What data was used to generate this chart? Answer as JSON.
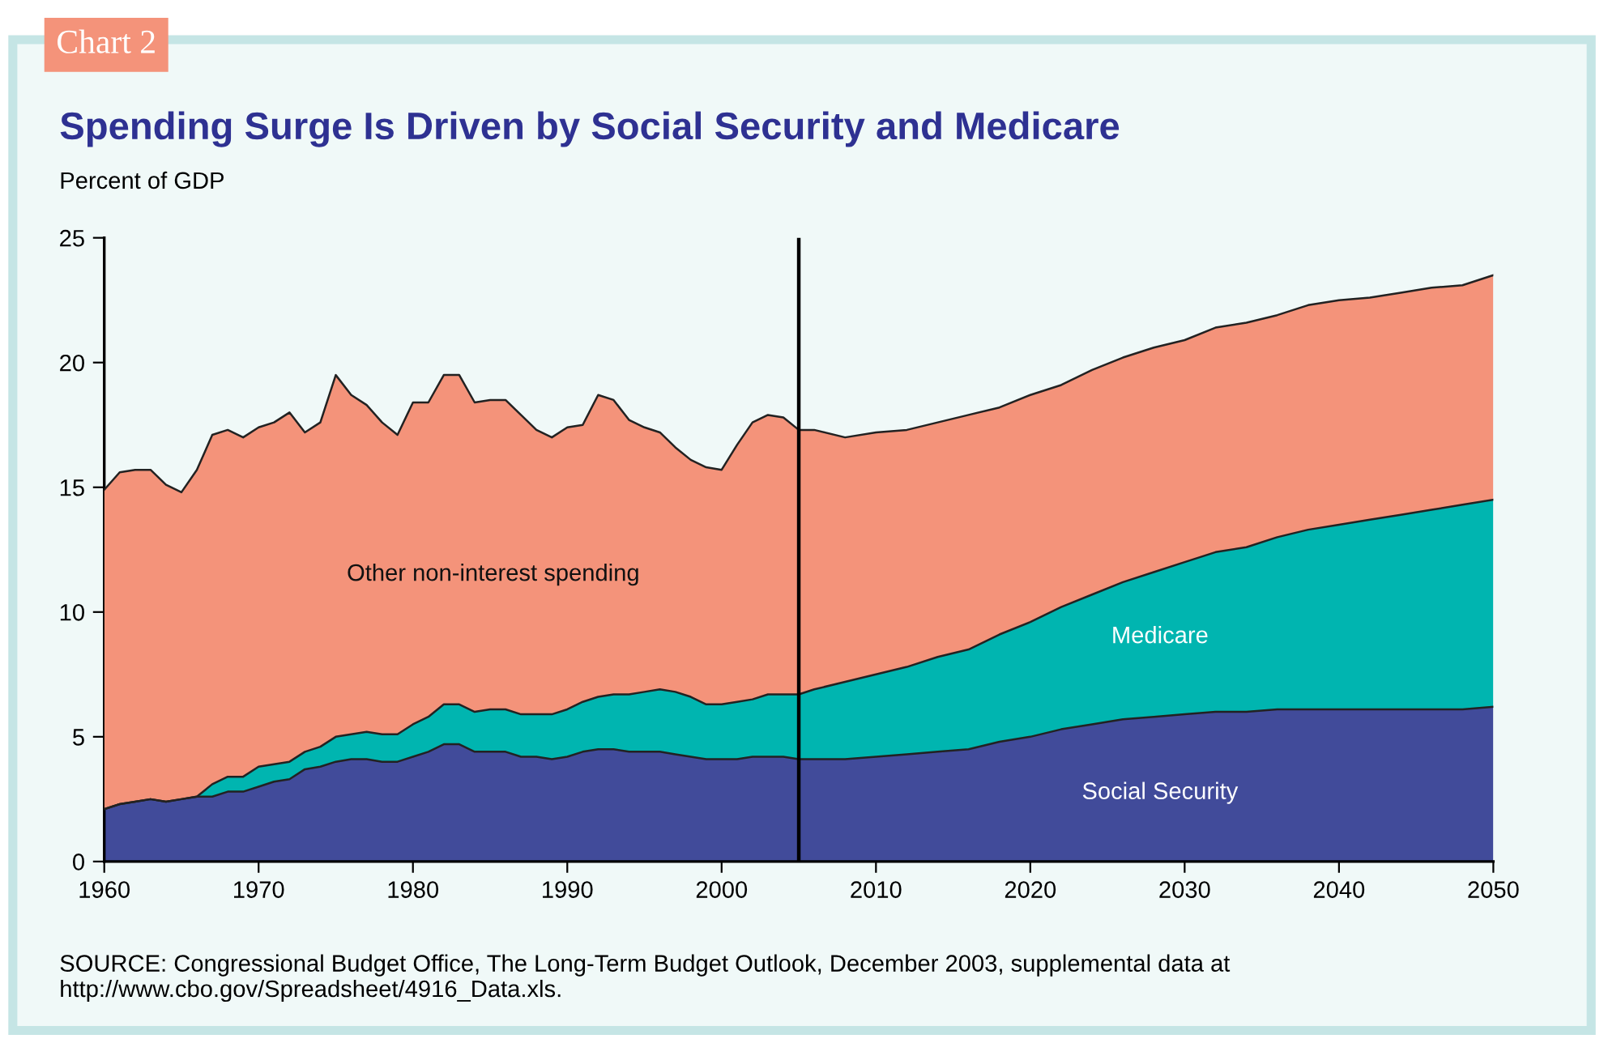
{
  "chart_data": {
    "type": "area",
    "stacked": true,
    "title": "Spending Surge Is Driven by Social Security and Medicare",
    "ylabel": "Percent of GDP",
    "x": [
      1960,
      1961,
      1962,
      1963,
      1964,
      1965,
      1966,
      1967,
      1968,
      1969,
      1970,
      1971,
      1972,
      1973,
      1974,
      1975,
      1976,
      1977,
      1978,
      1979,
      1980,
      1981,
      1982,
      1983,
      1984,
      1985,
      1986,
      1987,
      1988,
      1989,
      1990,
      1991,
      1992,
      1993,
      1994,
      1995,
      1996,
      1997,
      1998,
      1999,
      2000,
      2001,
      2002,
      2003,
      2004,
      2005,
      2006,
      2008,
      2010,
      2012,
      2014,
      2016,
      2018,
      2020,
      2022,
      2024,
      2026,
      2028,
      2030,
      2032,
      2034,
      2036,
      2038,
      2040,
      2042,
      2044,
      2046,
      2048,
      2050
    ],
    "series": [
      {
        "name": "Social Security",
        "color": "#414b9a",
        "values": [
          2.1,
          2.3,
          2.4,
          2.5,
          2.4,
          2.5,
          2.6,
          2.6,
          2.8,
          2.8,
          3.0,
          3.2,
          3.3,
          3.7,
          3.8,
          4.0,
          4.1,
          4.1,
          4.0,
          4.0,
          4.2,
          4.4,
          4.7,
          4.7,
          4.4,
          4.4,
          4.4,
          4.2,
          4.2,
          4.1,
          4.2,
          4.4,
          4.5,
          4.5,
          4.4,
          4.4,
          4.4,
          4.3,
          4.2,
          4.1,
          4.1,
          4.1,
          4.2,
          4.2,
          4.2,
          4.1,
          4.1,
          4.1,
          4.2,
          4.3,
          4.4,
          4.5,
          4.8,
          5.0,
          5.3,
          5.5,
          5.7,
          5.8,
          5.9,
          6.0,
          6.0,
          6.1,
          6.1,
          6.1,
          6.1,
          6.1,
          6.1,
          6.1,
          6.2
        ]
      },
      {
        "name": "Medicare",
        "color": "#00b5b0",
        "values": [
          0,
          0,
          0,
          0,
          0,
          0,
          0,
          0.5,
          0.6,
          0.6,
          0.8,
          0.7,
          0.7,
          0.7,
          0.8,
          1.0,
          1.0,
          1.1,
          1.1,
          1.1,
          1.3,
          1.4,
          1.6,
          1.6,
          1.6,
          1.7,
          1.7,
          1.7,
          1.7,
          1.8,
          1.9,
          2.0,
          2.1,
          2.2,
          2.3,
          2.4,
          2.5,
          2.5,
          2.4,
          2.2,
          2.2,
          2.3,
          2.3,
          2.5,
          2.5,
          2.6,
          2.8,
          3.1,
          3.3,
          3.5,
          3.8,
          4.0,
          4.3,
          4.6,
          4.9,
          5.2,
          5.5,
          5.8,
          6.1,
          6.4,
          6.6,
          6.9,
          7.2,
          7.4,
          7.6,
          7.8,
          8.0,
          8.2,
          8.3
        ]
      },
      {
        "name": "Other non-interest spending",
        "color": "#f4937a",
        "values": [
          12.8,
          13.3,
          13.3,
          13.2,
          12.7,
          12.3,
          13.1,
          14.0,
          13.9,
          13.6,
          13.6,
          13.7,
          14.0,
          12.8,
          13.0,
          14.5,
          13.6,
          13.1,
          12.5,
          12.0,
          12.9,
          12.6,
          13.2,
          13.2,
          12.4,
          12.4,
          12.4,
          12.0,
          11.4,
          11.1,
          11.3,
          11.1,
          12.1,
          11.8,
          11.0,
          10.6,
          10.3,
          9.8,
          9.5,
          9.5,
          9.4,
          10.3,
          11.1,
          11.2,
          11.1,
          10.6,
          10.4,
          9.8,
          9.7,
          9.5,
          9.4,
          9.4,
          9.1,
          9.1,
          8.9,
          9.0,
          9.0,
          9.0,
          8.9,
          9.0,
          9.0,
          8.9,
          9.0,
          9.0,
          8.9,
          8.9,
          8.9,
          8.8,
          9.0
        ]
      }
    ],
    "xlim": [
      1960,
      2050
    ],
    "xticks": [
      1960,
      1970,
      1980,
      1990,
      2000,
      2010,
      2020,
      2030,
      2040,
      2050
    ],
    "ylim": [
      0,
      25
    ],
    "yticks": [
      0,
      5,
      10,
      15,
      20,
      25
    ],
    "ref_lines": [
      {
        "axis": "x",
        "value": 2005,
        "color": "#000000"
      }
    ],
    "grid": false,
    "legend": false,
    "annotations": [
      "Chart 2",
      "SOURCE: Congressional Budget Office, The Long-Term Budget Outlook, December 2003, supplemental data at http://www.cbo.gov/Spreadsheet/4916_Data.xls."
    ]
  }
}
